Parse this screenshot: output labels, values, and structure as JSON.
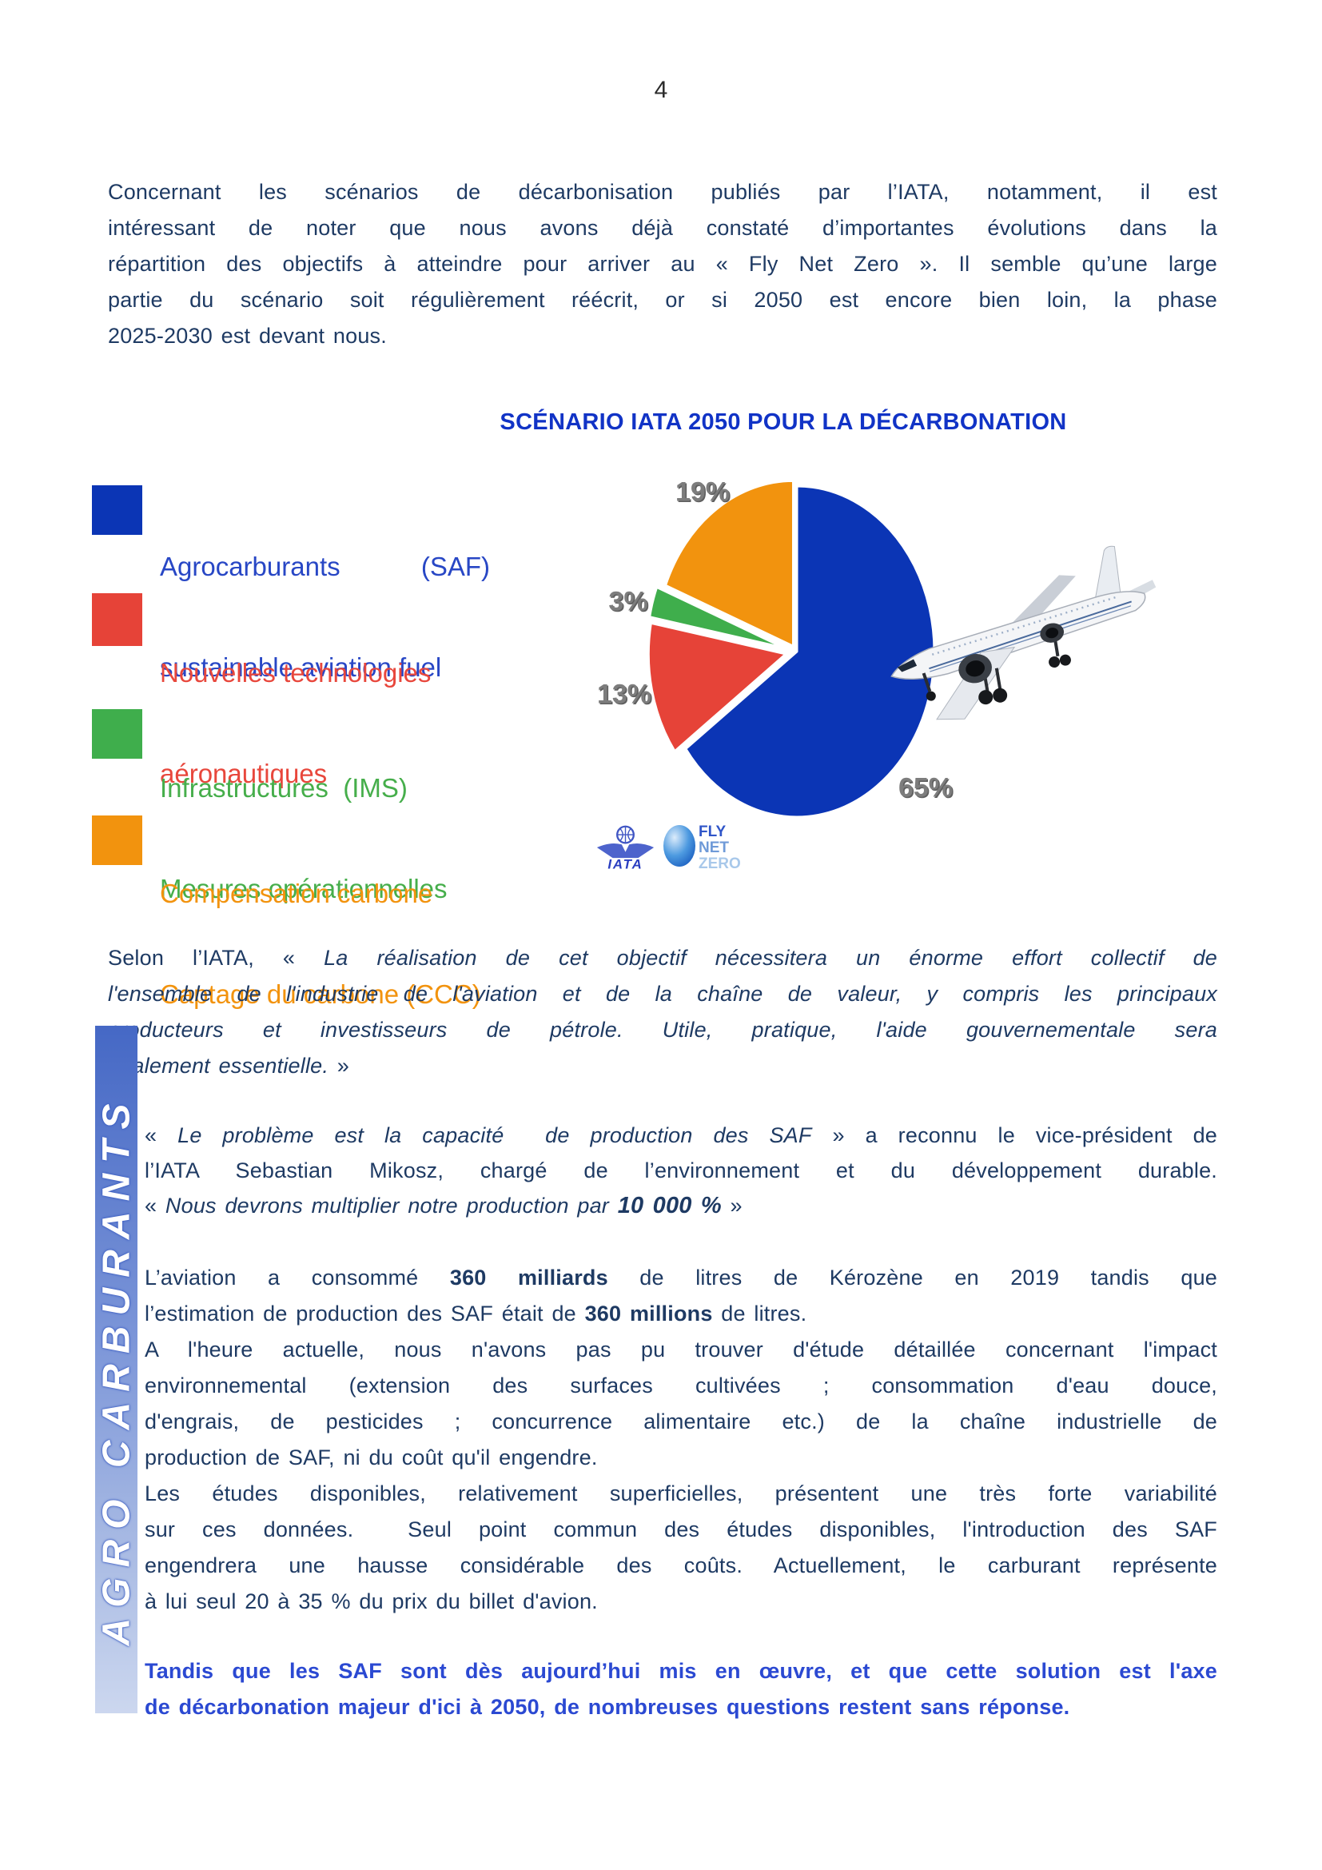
{
  "page": {
    "number": "4"
  },
  "colors": {
    "body_text": "#1e3a63",
    "title_blue": "#1133c6",
    "highlight_blue": "#2b49d2",
    "pie_blue": "#0b35b5",
    "pie_red": "#e64338",
    "pie_green": "#3fae4c",
    "pie_orange": "#f2930e",
    "pct_label_gray": "#7d7d7d",
    "sidebar_gradient_top": "#4568c5",
    "sidebar_gradient_bottom": "#ccd7ef"
  },
  "intro": {
    "lines": [
      {
        "j": true,
        "seg": [
          {
            "t": "Concernant les scénarios de décarbonisation publiés par l’IATA, notamment, il est"
          }
        ]
      },
      {
        "j": true,
        "seg": [
          {
            "t": "intéressant de noter que nous avons déjà constaté d’importantes évolutions dans la"
          }
        ]
      },
      {
        "j": true,
        "seg": [
          {
            "t": "répartition des objectifs à atteindre pour arriver au « Fly Net Zero ». Il semble qu’une large"
          }
        ]
      },
      {
        "j": true,
        "seg": [
          {
            "t": "partie du scénario soit régulièrement réécrit, or si 2050 est encore bien loin, la phase"
          }
        ]
      },
      {
        "j": false,
        "seg": [
          {
            "t": "2025-2030 est devant nous."
          }
        ]
      }
    ]
  },
  "chart": {
    "title": "SCÉNARIO IATA 2050 POUR LA DÉCARBONATION",
    "legend": {
      "items": [
        {
          "id": "saf",
          "line1a": "Agrocarburants",
          "line1b": "(SAF)",
          "line2": "sustainable aviation fuel"
        },
        {
          "id": "tech",
          "line1": "Nouvelles technologies",
          "line2": "aéronautiques"
        },
        {
          "id": "infra",
          "line1": "Infrastructures  (IMS)",
          "line2": "Mesures opérationnelles"
        },
        {
          "id": "comp",
          "line1": "Compensation carbone",
          "line2": "Captage du carbone (CCC)"
        }
      ]
    },
    "logos": {
      "iata": "IATA",
      "fly": "FLY",
      "net": "NET",
      "zero": "ZERO"
    }
  },
  "chart_data": {
    "type": "pie",
    "title": "SCÉNARIO IATA 2050 POUR LA DÉCARBONATION",
    "start": "top",
    "direction": "clockwise",
    "slices": [
      {
        "id": "saf",
        "label": "Agrocarburants (SAF) sustainable aviation fuel",
        "value": 65,
        "pct_label": "65%",
        "color": "#0b35b5",
        "explode": 0
      },
      {
        "id": "technologies",
        "label": "Nouvelles technologies aéronautiques",
        "value": 13,
        "pct_label": "13%",
        "color": "#e64338",
        "explode": 14
      },
      {
        "id": "infrastructures",
        "label": "Infrastructures (IMS) Mesures opérationnelles",
        "value": 3,
        "pct_label": "3%",
        "color": "#3fae4c",
        "explode": 16
      },
      {
        "id": "compensation",
        "label": "Compensation carbone Captage du carbone (CCC)",
        "value": 19,
        "pct_label": "19%",
        "color": "#f2930e",
        "explode": 8
      }
    ]
  },
  "selon": {
    "lines": [
      {
        "j": true,
        "seg": [
          {
            "t": "Selon l’IATA, « "
          },
          {
            "t": "La réalisation de cet objectif nécessitera un énorme effort collectif de",
            "s": "i"
          }
        ]
      },
      {
        "j": true,
        "seg": [
          {
            "t": "l'ensemble de l'industrie de l'aviation et de la chaîne de valeur, y compris les principaux",
            "s": "i"
          }
        ]
      },
      {
        "j": true,
        "seg": [
          {
            "t": "producteurs et investisseurs de pétrole. Utile, pratique, l'aide gouvernementale sera",
            "s": "i"
          }
        ]
      },
      {
        "j": false,
        "seg": [
          {
            "t": "également essentielle.",
            "s": "i"
          },
          {
            "t": " »"
          }
        ]
      }
    ]
  },
  "sidebar": {
    "label": "AGRO CARBURANTS"
  },
  "probleme": {
    "lines": [
      {
        "j": true,
        "seg": [
          {
            "t": "« "
          },
          {
            "t": "Le problème est la capacité  de production des SAF",
            "s": "i"
          },
          {
            "t": " » a reconnu le vice-président de"
          }
        ]
      },
      {
        "j": true,
        "seg": [
          {
            "t": "l’IATA Sebastian Mikosz, chargé de l’environnement et du développement durable."
          }
        ]
      },
      {
        "j": false,
        "seg": [
          {
            "t": "« "
          },
          {
            "t": "Nous devrons multiplier notre production par ",
            "s": "i"
          },
          {
            "t": "10 000 %",
            "s": "bi"
          },
          {
            "t": " »"
          }
        ]
      }
    ]
  },
  "aviation": {
    "lines": [
      {
        "j": true,
        "seg": [
          {
            "t": "L’aviation a consommé "
          },
          {
            "t": "360 milliards",
            "s": "b"
          },
          {
            "t": " de litres de Kérozène en 2019 tandis que"
          }
        ]
      },
      {
        "j": false,
        "seg": [
          {
            "t": "l’estimation de production des SAF était de "
          },
          {
            "t": "360 millions",
            "s": "b"
          },
          {
            "t": " de litres."
          }
        ]
      },
      {
        "j": true,
        "seg": [
          {
            "t": "A l'heure actuelle, nous n'avons pas pu trouver d'étude détaillée concernant l'impact"
          }
        ]
      },
      {
        "j": true,
        "seg": [
          {
            "t": "environnemental (extension des surfaces cultivées ; consommation d'eau douce,"
          }
        ]
      },
      {
        "j": true,
        "seg": [
          {
            "t": "d'engrais, de pesticides ; concurrence alimentaire etc.) de la chaîne industrielle de"
          }
        ]
      },
      {
        "j": false,
        "seg": [
          {
            "t": "production de SAF, ni du coût qu'il engendre."
          }
        ]
      },
      {
        "j": true,
        "seg": [
          {
            "t": "Les études disponibles, relativement superficielles, présentent une très forte variabilité"
          }
        ]
      },
      {
        "j": true,
        "seg": [
          {
            "t": "sur ces données.  Seul point commun des études disponibles, l'introduction des SAF"
          }
        ]
      },
      {
        "j": true,
        "seg": [
          {
            "t": "engendrera une hausse considérable des coûts. Actuellement, le carburant représente"
          }
        ]
      },
      {
        "j": false,
        "seg": [
          {
            "t": "à lui seul 20 à 35 % du prix du billet d'avion."
          }
        ]
      }
    ]
  },
  "tandis": {
    "lines": [
      {
        "j": true,
        "seg": [
          {
            "t": "Tandis que les SAF sont dès aujourd’hui mis en œuvre, et que cette solution est l'axe"
          }
        ]
      },
      {
        "j": false,
        "seg": [
          {
            "t": "de décarbonation majeur d'ici à 2050, de nombreuses questions restent sans réponse."
          }
        ]
      }
    ]
  }
}
